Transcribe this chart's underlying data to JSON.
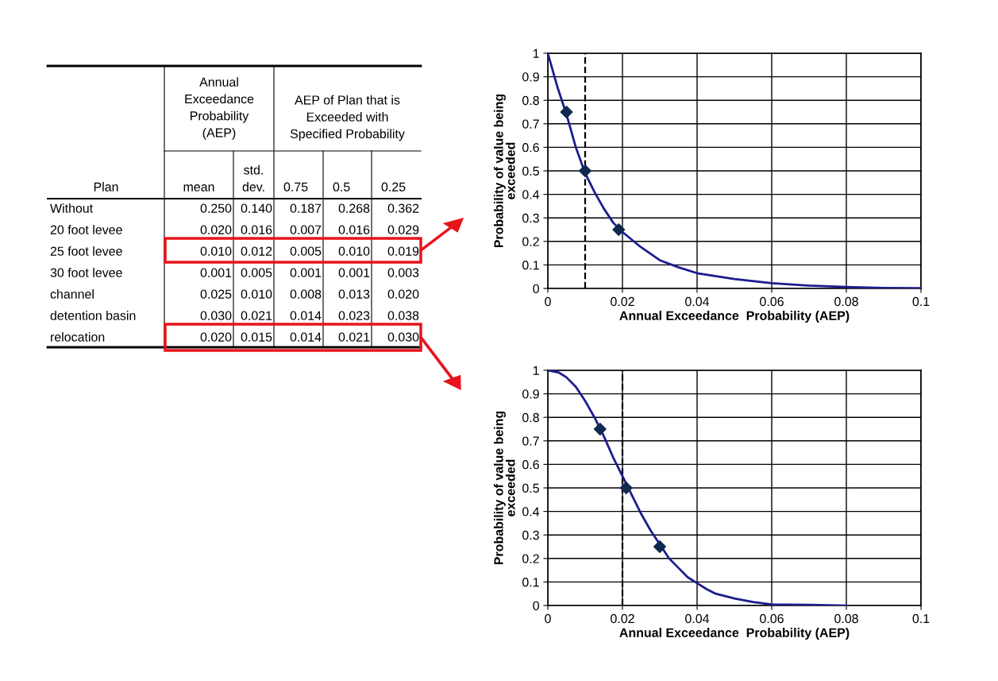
{
  "chart_data": [
    {
      "type": "other",
      "annotations": [
        "Plan",
        "Annual\nExceedance\nProbability\n(AEP)",
        "AEP of Plan that is\nExceeded with\nSpecified Probability"
      ],
      "categories": [
        "mean",
        "std.\ndev.",
        "0.75",
        "0.5",
        "0.25"
      ],
      "y_categories": [
        "Without",
        "20 foot levee",
        "25 foot levee",
        "30 foot levee",
        "channel",
        "detention basin",
        "relocation"
      ],
      "cell_labels": [
        [
          "0.250",
          "0.140",
          "0.187",
          "0.268",
          "0.362"
        ],
        [
          "0.020",
          "0.016",
          "0.007",
          "0.016",
          "0.029"
        ],
        [
          "0.010",
          "0.012",
          "0.005",
          "0.010",
          "0.019"
        ],
        [
          "0.001",
          "0.005",
          "0.001",
          "0.001",
          "0.003"
        ],
        [
          "0.025",
          "0.010",
          "0.008",
          "0.013",
          "0.020"
        ],
        [
          "0.030",
          "0.021",
          "0.014",
          "0.023",
          "0.038"
        ],
        [
          "0.020",
          "0.015",
          "0.014",
          "0.021",
          "0.030"
        ]
      ]
    },
    {
      "type": "line",
      "xlabel": "Annual Exceedance  Probability (AEP)",
      "ylabel": "Probability of value being\nexceeded",
      "xlim": [
        0,
        0.1
      ],
      "ylim": [
        0,
        1
      ],
      "xticks": [
        0,
        0.02,
        0.04,
        0.06,
        0.08,
        0.1
      ],
      "yticks": [
        0,
        0.1,
        0.2,
        0.3,
        0.4,
        0.5,
        0.6,
        0.7,
        0.8,
        0.9,
        1
      ],
      "grid": true,
      "legend": false,
      "series": [
        {
          "type": "line",
          "color": "#1c1c8e",
          "marker": "none",
          "x": [
            0,
            0.0025,
            0.005,
            0.0075,
            0.01,
            0.0125,
            0.015,
            0.0175,
            0.02,
            0.025,
            0.03,
            0.035,
            0.04,
            0.05,
            0.06,
            0.07,
            0.08,
            0.09,
            0.1
          ],
          "values": [
            1,
            0.86,
            0.74,
            0.6,
            0.49,
            0.41,
            0.34,
            0.28,
            0.24,
            0.175,
            0.12,
            0.09,
            0.065,
            0.04,
            0.022,
            0.012,
            0.006,
            0.002,
            0.001
          ]
        },
        {
          "type": "scatter",
          "color": "#10294f",
          "marker": "diamond",
          "x": [
            0.005,
            0.01,
            0.019
          ],
          "values": [
            0.75,
            0.5,
            0.25
          ]
        }
      ],
      "ref_lines": [
        {
          "axis": "x",
          "value": 0.01,
          "color": "#000000",
          "line_style": "dashed"
        }
      ]
    },
    {
      "type": "line",
      "xlabel": "Annual Exceedance  Probability (AEP)",
      "ylabel": "Probability of value being\nexceeded",
      "xlim": [
        0,
        0.1
      ],
      "ylim": [
        0,
        1
      ],
      "xticks": [
        0,
        0.02,
        0.04,
        0.06,
        0.08,
        0.1
      ],
      "yticks": [
        0,
        0.1,
        0.2,
        0.3,
        0.4,
        0.5,
        0.6,
        0.7,
        0.8,
        0.9,
        1
      ],
      "grid": true,
      "legend": false,
      "series": [
        {
          "type": "line",
          "color": "#1c1c8e",
          "marker": "none",
          "x": [
            0,
            0.003,
            0.005,
            0.0075,
            0.01,
            0.0125,
            0.015,
            0.0175,
            0.02,
            0.0225,
            0.025,
            0.0275,
            0.03,
            0.0325,
            0.035,
            0.0375,
            0.04,
            0.0425,
            0.045,
            0.05,
            0.055,
            0.06,
            0.07,
            0.08
          ],
          "values": [
            1,
            0.99,
            0.97,
            0.93,
            0.87,
            0.8,
            0.72,
            0.63,
            0.55,
            0.47,
            0.39,
            0.32,
            0.26,
            0.2,
            0.16,
            0.12,
            0.095,
            0.07,
            0.05,
            0.03,
            0.015,
            0.005,
            0.003,
            0
          ]
        },
        {
          "type": "scatter",
          "color": "#10294f",
          "marker": "diamond",
          "x": [
            0.014,
            0.021,
            0.03
          ],
          "values": [
            0.75,
            0.5,
            0.25
          ]
        }
      ],
      "ref_lines": [
        {
          "axis": "x",
          "value": 0.02,
          "color": "#000000",
          "line_style": "dashed"
        }
      ]
    }
  ]
}
